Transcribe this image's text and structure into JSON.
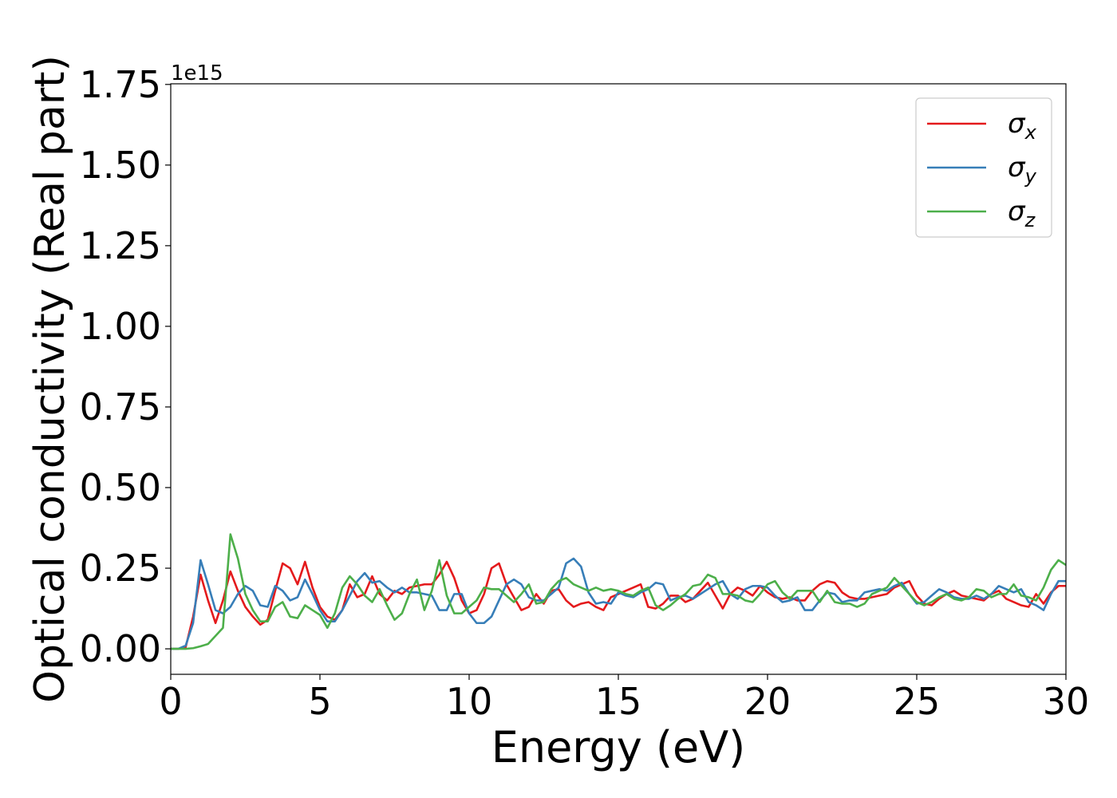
{
  "chart_data": {
    "type": "line",
    "x_label": "Energy (eV)",
    "y_label": "Optical conductivity (Real part)",
    "y_offset_label": "1e15",
    "xlim": [
      0,
      30
    ],
    "xticks": [
      0,
      5,
      10,
      15,
      20,
      25,
      30
    ],
    "ylim": [
      -0.079,
      1.752
    ],
    "yticks": [
      {
        "value": 0,
        "label": "0.00"
      },
      0.25,
      {
        "value": 0.5,
        "label": "0.50"
      },
      0.75,
      {
        "value": 1,
        "label": "1.00"
      },
      1.25,
      {
        "value": 1.5,
        "label": "1.50"
      },
      1.75
    ],
    "grid": false,
    "legend": "upper right",
    "x": [
      0,
      0.25,
      0.5,
      0.75,
      1,
      1.25,
      1.5,
      1.75,
      2,
      2.25,
      2.5,
      2.75,
      3,
      3.25,
      3.5,
      3.75,
      4,
      4.25,
      4.5,
      4.75,
      5,
      5.25,
      5.5,
      5.75,
      6,
      6.25,
      6.5,
      6.75,
      7,
      7.25,
      7.5,
      7.75,
      8,
      8.25,
      8.5,
      8.75,
      9,
      9.25,
      9.5,
      9.75,
      10,
      10.25,
      10.5,
      10.75,
      11,
      11.25,
      11.5,
      11.75,
      12,
      12.25,
      12.5,
      12.75,
      13,
      13.25,
      13.5,
      13.75,
      14,
      14.25,
      14.5,
      14.75,
      15,
      15.25,
      15.5,
      15.75,
      16,
      16.25,
      16.5,
      16.75,
      17,
      17.25,
      17.5,
      17.75,
      18,
      18.25,
      18.5,
      18.75,
      19,
      19.25,
      19.5,
      19.75,
      20,
      20.25,
      20.5,
      20.75,
      21,
      21.25,
      21.5,
      21.75,
      22,
      22.25,
      22.5,
      22.75,
      23,
      23.25,
      23.5,
      23.75,
      24,
      24.25,
      24.5,
      24.75,
      25,
      25.25,
      25.5,
      25.75,
      26,
      26.25,
      26.5,
      26.75,
      27,
      27.25,
      27.5,
      27.75,
      28,
      28.25,
      28.5,
      28.75,
      29,
      29.25,
      29.5,
      29.75,
      30
    ],
    "series": [
      {
        "name": "σx",
        "color": "#e41a1c",
        "values": [
          0,
          0,
          0.005,
          0.1,
          0.23,
          0.15,
          0.08,
          0.15,
          0.24,
          0.18,
          0.13,
          0.1,
          0.075,
          0.09,
          0.18,
          0.265,
          0.25,
          0.2,
          0.27,
          0.19,
          0.13,
          0.1,
          0.09,
          0.12,
          0.2,
          0.16,
          0.17,
          0.225,
          0.17,
          0.15,
          0.18,
          0.17,
          0.19,
          0.195,
          0.2,
          0.2,
          0.23,
          0.27,
          0.22,
          0.15,
          0.11,
          0.12,
          0.17,
          0.25,
          0.265,
          0.2,
          0.16,
          0.12,
          0.13,
          0.17,
          0.14,
          0.18,
          0.185,
          0.15,
          0.13,
          0.14,
          0.145,
          0.13,
          0.12,
          0.16,
          0.17,
          0.18,
          0.19,
          0.2,
          0.13,
          0.125,
          0.14,
          0.165,
          0.165,
          0.145,
          0.155,
          0.18,
          0.205,
          0.165,
          0.125,
          0.17,
          0.19,
          0.18,
          0.165,
          0.195,
          0.175,
          0.16,
          0.155,
          0.16,
          0.15,
          0.15,
          0.18,
          0.2,
          0.21,
          0.205,
          0.175,
          0.16,
          0.155,
          0.155,
          0.16,
          0.165,
          0.17,
          0.19,
          0.2,
          0.21,
          0.165,
          0.14,
          0.135,
          0.155,
          0.17,
          0.18,
          0.165,
          0.16,
          0.155,
          0.15,
          0.17,
          0.18,
          0.155,
          0.145,
          0.135,
          0.13,
          0.17,
          0.14,
          0.175,
          0.195,
          0.195
        ]
      },
      {
        "name": "σy",
        "color": "#377eb8",
        "values": [
          0,
          0,
          0.01,
          0.08,
          0.275,
          0.2,
          0.12,
          0.11,
          0.13,
          0.17,
          0.195,
          0.18,
          0.135,
          0.13,
          0.195,
          0.18,
          0.15,
          0.16,
          0.215,
          0.17,
          0.12,
          0.085,
          0.085,
          0.12,
          0.165,
          0.21,
          0.235,
          0.205,
          0.21,
          0.19,
          0.175,
          0.19,
          0.175,
          0.175,
          0.17,
          0.165,
          0.12,
          0.12,
          0.17,
          0.17,
          0.11,
          0.08,
          0.08,
          0.1,
          0.15,
          0.2,
          0.215,
          0.2,
          0.16,
          0.15,
          0.15,
          0.17,
          0.19,
          0.265,
          0.28,
          0.255,
          0.175,
          0.14,
          0.145,
          0.14,
          0.175,
          0.165,
          0.16,
          0.175,
          0.185,
          0.205,
          0.2,
          0.15,
          0.16,
          0.165,
          0.155,
          0.17,
          0.185,
          0.2,
          0.21,
          0.17,
          0.155,
          0.185,
          0.195,
          0.195,
          0.19,
          0.165,
          0.145,
          0.15,
          0.16,
          0.12,
          0.12,
          0.15,
          0.175,
          0.17,
          0.145,
          0.15,
          0.15,
          0.175,
          0.18,
          0.185,
          0.18,
          0.195,
          0.205,
          0.17,
          0.14,
          0.145,
          0.165,
          0.185,
          0.175,
          0.16,
          0.155,
          0.155,
          0.165,
          0.155,
          0.17,
          0.195,
          0.185,
          0.175,
          0.185,
          0.145,
          0.135,
          0.12,
          0.17,
          0.21,
          0.21
        ]
      },
      {
        "name": "σz",
        "color": "#4daf4a",
        "values": [
          0,
          0,
          0,
          0.002,
          0.008,
          0.015,
          0.04,
          0.065,
          0.355,
          0.28,
          0.17,
          0.12,
          0.085,
          0.085,
          0.13,
          0.145,
          0.1,
          0.095,
          0.135,
          0.12,
          0.105,
          0.065,
          0.11,
          0.19,
          0.225,
          0.2,
          0.165,
          0.145,
          0.185,
          0.135,
          0.09,
          0.11,
          0.17,
          0.215,
          0.12,
          0.18,
          0.275,
          0.165,
          0.11,
          0.11,
          0.13,
          0.15,
          0.19,
          0.185,
          0.185,
          0.165,
          0.145,
          0.17,
          0.2,
          0.14,
          0.145,
          0.185,
          0.21,
          0.22,
          0.2,
          0.19,
          0.18,
          0.19,
          0.18,
          0.185,
          0.18,
          0.17,
          0.165,
          0.18,
          0.19,
          0.135,
          0.12,
          0.135,
          0.155,
          0.17,
          0.195,
          0.2,
          0.23,
          0.22,
          0.17,
          0.17,
          0.165,
          0.15,
          0.145,
          0.17,
          0.2,
          0.21,
          0.175,
          0.155,
          0.18,
          0.18,
          0.18,
          0.145,
          0.18,
          0.145,
          0.14,
          0.14,
          0.13,
          0.14,
          0.17,
          0.18,
          0.19,
          0.22,
          0.195,
          0.17,
          0.145,
          0.135,
          0.145,
          0.16,
          0.17,
          0.155,
          0.15,
          0.16,
          0.185,
          0.18,
          0.16,
          0.17,
          0.17,
          0.2,
          0.165,
          0.16,
          0.15,
          0.19,
          0.245,
          0.275,
          0.26
        ]
      }
    ]
  }
}
